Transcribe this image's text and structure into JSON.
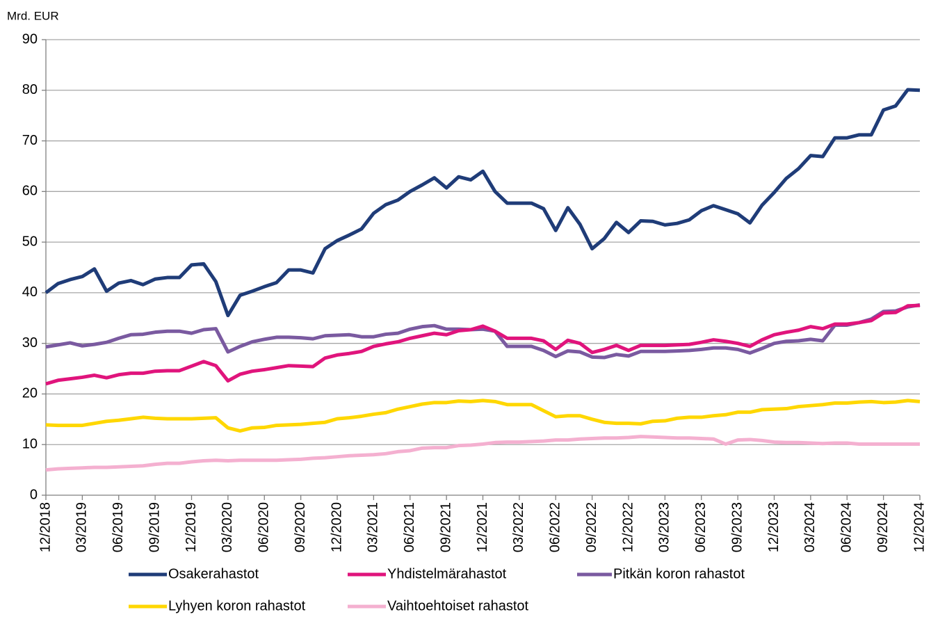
{
  "chart_data": {
    "type": "line",
    "y_axis_label": "Mrd. EUR",
    "categories": [
      "12/2018",
      null,
      null,
      "03/2019",
      null,
      null,
      "06/2019",
      null,
      null,
      "09/2019",
      null,
      null,
      "12/2019",
      null,
      null,
      "03/2020",
      null,
      null,
      "06/2020",
      null,
      null,
      "09/2020",
      null,
      null,
      "12/2020",
      null,
      null,
      "03/2021",
      null,
      null,
      "06/2021",
      null,
      null,
      "09/2021",
      null,
      null,
      "12/2021",
      null,
      null,
      "03/2022",
      null,
      null,
      "06/2022",
      null,
      null,
      "09/2022",
      null,
      null,
      "12/2022",
      null,
      null,
      "03/2023",
      null,
      null,
      "06/2023",
      null,
      null,
      "09/2023",
      null,
      null,
      "12/2023",
      null,
      null,
      "03/2024",
      null,
      null,
      "06/2024",
      null,
      null,
      "09/2024",
      null,
      null,
      "12/2024"
    ],
    "ylim": [
      0,
      90
    ],
    "yticks": [
      0,
      10,
      20,
      30,
      40,
      50,
      60,
      70,
      80,
      90
    ],
    "grid": true,
    "legend": "bottom",
    "series": [
      {
        "name": "Osakerahastot",
        "color": "#1f3c78",
        "values": [
          40,
          41.8,
          42.6,
          43.2,
          44.7,
          40.3,
          41.9,
          42.4,
          41.6,
          42.7,
          43,
          43,
          45.5,
          45.7,
          42.2,
          35.5,
          39.5,
          40.3,
          41.2,
          42,
          44.5,
          44.5,
          43.9,
          48.7,
          50.3,
          51.4,
          52.6,
          55.7,
          57.4,
          58.3,
          60,
          61.3,
          62.7,
          60.7,
          62.9,
          62.3,
          64,
          60,
          57.7,
          57.7,
          57.7,
          56.6,
          52.3,
          56.8,
          53.5,
          48.7,
          50.7,
          53.9,
          51.9,
          54.2,
          54.1,
          53.4,
          53.7,
          54.4,
          56.2,
          57.2,
          56.4,
          55.6,
          53.8,
          57.3,
          59.8,
          62.6,
          64.5,
          67.1,
          66.9,
          70.6,
          70.6,
          71.2,
          71.2,
          76.1,
          76.9,
          80.1,
          80
        ]
      },
      {
        "name": "Yhdistelmärahastot",
        "color": "#e0147c",
        "values": [
          22,
          22.7,
          23,
          23.3,
          23.7,
          23.2,
          23.8,
          24.1,
          24.1,
          24.5,
          24.6,
          24.6,
          25.5,
          26.4,
          25.6,
          22.6,
          23.9,
          24.5,
          24.8,
          25.2,
          25.6,
          25.5,
          25.4,
          27.1,
          27.7,
          28,
          28.4,
          29.4,
          29.9,
          30.3,
          31,
          31.5,
          32,
          31.7,
          32.5,
          32.7,
          33.4,
          32.4,
          31,
          31,
          31,
          30.5,
          28.8,
          30.6,
          30,
          28.2,
          28.8,
          29.6,
          28.6,
          29.6,
          29.6,
          29.6,
          29.7,
          29.8,
          30.2,
          30.7,
          30.4,
          30,
          29.4,
          30.7,
          31.7,
          32.2,
          32.6,
          33.3,
          32.9,
          33.8,
          33.8,
          34.1,
          34.5,
          36,
          36.1,
          37.4,
          37.5
        ]
      },
      {
        "name": "Pitkän koron rahastot",
        "color": "#7a5aa0",
        "values": [
          29.3,
          29.7,
          30.1,
          29.5,
          29.8,
          30.2,
          31,
          31.7,
          31.8,
          32.2,
          32.4,
          32.4,
          32,
          32.7,
          32.9,
          28.3,
          29.4,
          30.3,
          30.8,
          31.2,
          31.2,
          31.1,
          30.9,
          31.5,
          31.6,
          31.7,
          31.3,
          31.3,
          31.8,
          32,
          32.8,
          33.3,
          33.5,
          32.8,
          32.8,
          32.7,
          32.8,
          32.4,
          29.4,
          29.4,
          29.4,
          28.6,
          27.4,
          28.5,
          28.3,
          27.3,
          27.2,
          27.8,
          27.5,
          28.4,
          28.4,
          28.4,
          28.5,
          28.6,
          28.8,
          29.1,
          29.1,
          28.8,
          28.1,
          29,
          30,
          30.4,
          30.5,
          30.8,
          30.5,
          33.6,
          33.6,
          34.1,
          34.8,
          36.3,
          36.4,
          37.2,
          37.6
        ]
      },
      {
        "name": "Lyhyen koron rahastot",
        "color": "#ffd700",
        "values": [
          13.9,
          13.8,
          13.8,
          13.8,
          14.2,
          14.6,
          14.8,
          15.1,
          15.4,
          15.2,
          15.1,
          15.1,
          15.1,
          15.2,
          15.3,
          13.3,
          12.7,
          13.3,
          13.4,
          13.8,
          13.9,
          14,
          14.2,
          14.4,
          15.1,
          15.3,
          15.6,
          16,
          16.3,
          17,
          17.5,
          18,
          18.3,
          18.3,
          18.6,
          18.5,
          18.7,
          18.5,
          17.9,
          17.9,
          17.9,
          16.7,
          15.5,
          15.7,
          15.7,
          15,
          14.4,
          14.2,
          14.2,
          14.1,
          14.6,
          14.7,
          15.2,
          15.4,
          15.4,
          15.7,
          15.9,
          16.4,
          16.4,
          16.9,
          17,
          17.1,
          17.5,
          17.7,
          17.9,
          18.2,
          18.2,
          18.4,
          18.5,
          18.3,
          18.4,
          18.7,
          18.5
        ]
      },
      {
        "name": "Vaihtoehtoiset rahastot",
        "color": "#f4b0d0",
        "values": [
          5,
          5.2,
          5.3,
          5.4,
          5.5,
          5.5,
          5.6,
          5.7,
          5.8,
          6.1,
          6.3,
          6.3,
          6.6,
          6.8,
          6.9,
          6.8,
          6.9,
          6.9,
          6.9,
          6.9,
          7,
          7.1,
          7.3,
          7.4,
          7.6,
          7.8,
          7.9,
          8,
          8.2,
          8.6,
          8.8,
          9.3,
          9.4,
          9.4,
          9.8,
          9.9,
          10.1,
          10.4,
          10.5,
          10.5,
          10.6,
          10.7,
          10.9,
          10.9,
          11.1,
          11.2,
          11.3,
          11.3,
          11.4,
          11.6,
          11.5,
          11.4,
          11.3,
          11.3,
          11.2,
          11.1,
          10.1,
          10.9,
          11,
          10.8,
          10.5,
          10.4,
          10.4,
          10.3,
          10.2,
          10.3,
          10.3,
          10.1,
          10.1,
          10.1,
          10.1,
          10.1,
          10.1
        ]
      }
    ]
  }
}
